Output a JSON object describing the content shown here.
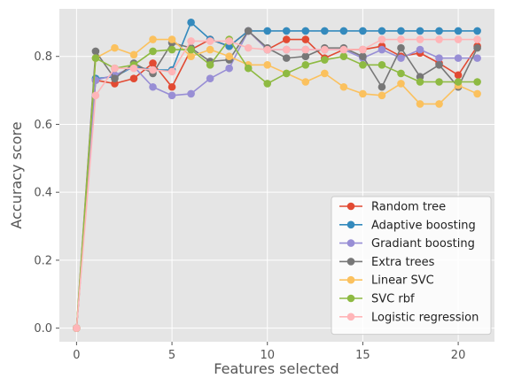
{
  "chart_data": {
    "type": "line",
    "title": "",
    "xlabel": "Features selected",
    "ylabel": "Accuracy score",
    "xlim": [
      -0.9,
      21.9
    ],
    "ylim": [
      -0.04,
      0.94
    ],
    "xticks": [
      0,
      5,
      10,
      15,
      20
    ],
    "yticks": [
      0.0,
      0.2,
      0.4,
      0.6,
      0.8
    ],
    "ytick_labels": [
      "0.0",
      "0.2",
      "0.4",
      "0.6",
      "0.8"
    ],
    "grid": true,
    "legend_position": "lower-right",
    "x": [
      0,
      1,
      2,
      3,
      4,
      5,
      6,
      7,
      8,
      9,
      10,
      11,
      12,
      13,
      14,
      15,
      16,
      17,
      18,
      19,
      20,
      21
    ],
    "series": [
      {
        "name": "Random tree",
        "color": "#e24a33",
        "values": [
          0.0,
          0.73,
          0.72,
          0.735,
          0.78,
          0.71,
          0.82,
          0.85,
          0.83,
          0.875,
          0.82,
          0.85,
          0.85,
          0.795,
          0.82,
          0.82,
          0.83,
          0.8,
          0.81,
          0.78,
          0.745,
          0.83
        ]
      },
      {
        "name": "Adaptive boosting",
        "color": "#348abd",
        "values": [
          0.0,
          0.735,
          0.74,
          0.77,
          0.76,
          0.76,
          0.9,
          0.85,
          0.83,
          0.875,
          0.875,
          0.875,
          0.875,
          0.875,
          0.875,
          0.875,
          0.875,
          0.875,
          0.875,
          0.875,
          0.875,
          0.875
        ]
      },
      {
        "name": "Gradiant boosting",
        "color": "#988ed5",
        "values": [
          0.0,
          0.73,
          0.745,
          0.77,
          0.71,
          0.685,
          0.69,
          0.735,
          0.765,
          0.875,
          0.82,
          0.82,
          0.82,
          0.82,
          0.82,
          0.795,
          0.82,
          0.795,
          0.82,
          0.795,
          0.795,
          0.795
        ]
      },
      {
        "name": "Extra trees",
        "color": "#777777",
        "values": [
          0.0,
          0.815,
          0.735,
          0.78,
          0.75,
          0.84,
          0.825,
          0.785,
          0.79,
          0.875,
          0.825,
          0.795,
          0.8,
          0.825,
          0.825,
          0.8,
          0.71,
          0.825,
          0.74,
          0.775,
          0.71,
          0.825
        ]
      },
      {
        "name": "Linear SVC",
        "color": "#fbc15e",
        "values": [
          0.0,
          0.795,
          0.825,
          0.805,
          0.85,
          0.85,
          0.8,
          0.82,
          0.8,
          0.775,
          0.775,
          0.75,
          0.725,
          0.75,
          0.71,
          0.69,
          0.685,
          0.72,
          0.66,
          0.66,
          0.715,
          0.69
        ]
      },
      {
        "name": "SVC rbf",
        "color": "#8eba42",
        "values": [
          0.0,
          0.795,
          0.765,
          0.775,
          0.815,
          0.82,
          0.82,
          0.775,
          0.85,
          0.765,
          0.72,
          0.75,
          0.775,
          0.79,
          0.8,
          0.775,
          0.775,
          0.75,
          0.725,
          0.725,
          0.725,
          0.725
        ]
      },
      {
        "name": "Logistic regression",
        "color": "#ffb5b8",
        "values": [
          0.0,
          0.685,
          0.765,
          0.765,
          0.76,
          0.755,
          0.845,
          0.845,
          0.845,
          0.825,
          0.82,
          0.82,
          0.82,
          0.82,
          0.82,
          0.82,
          0.85,
          0.85,
          0.85,
          0.85,
          0.85,
          0.85
        ]
      }
    ]
  }
}
